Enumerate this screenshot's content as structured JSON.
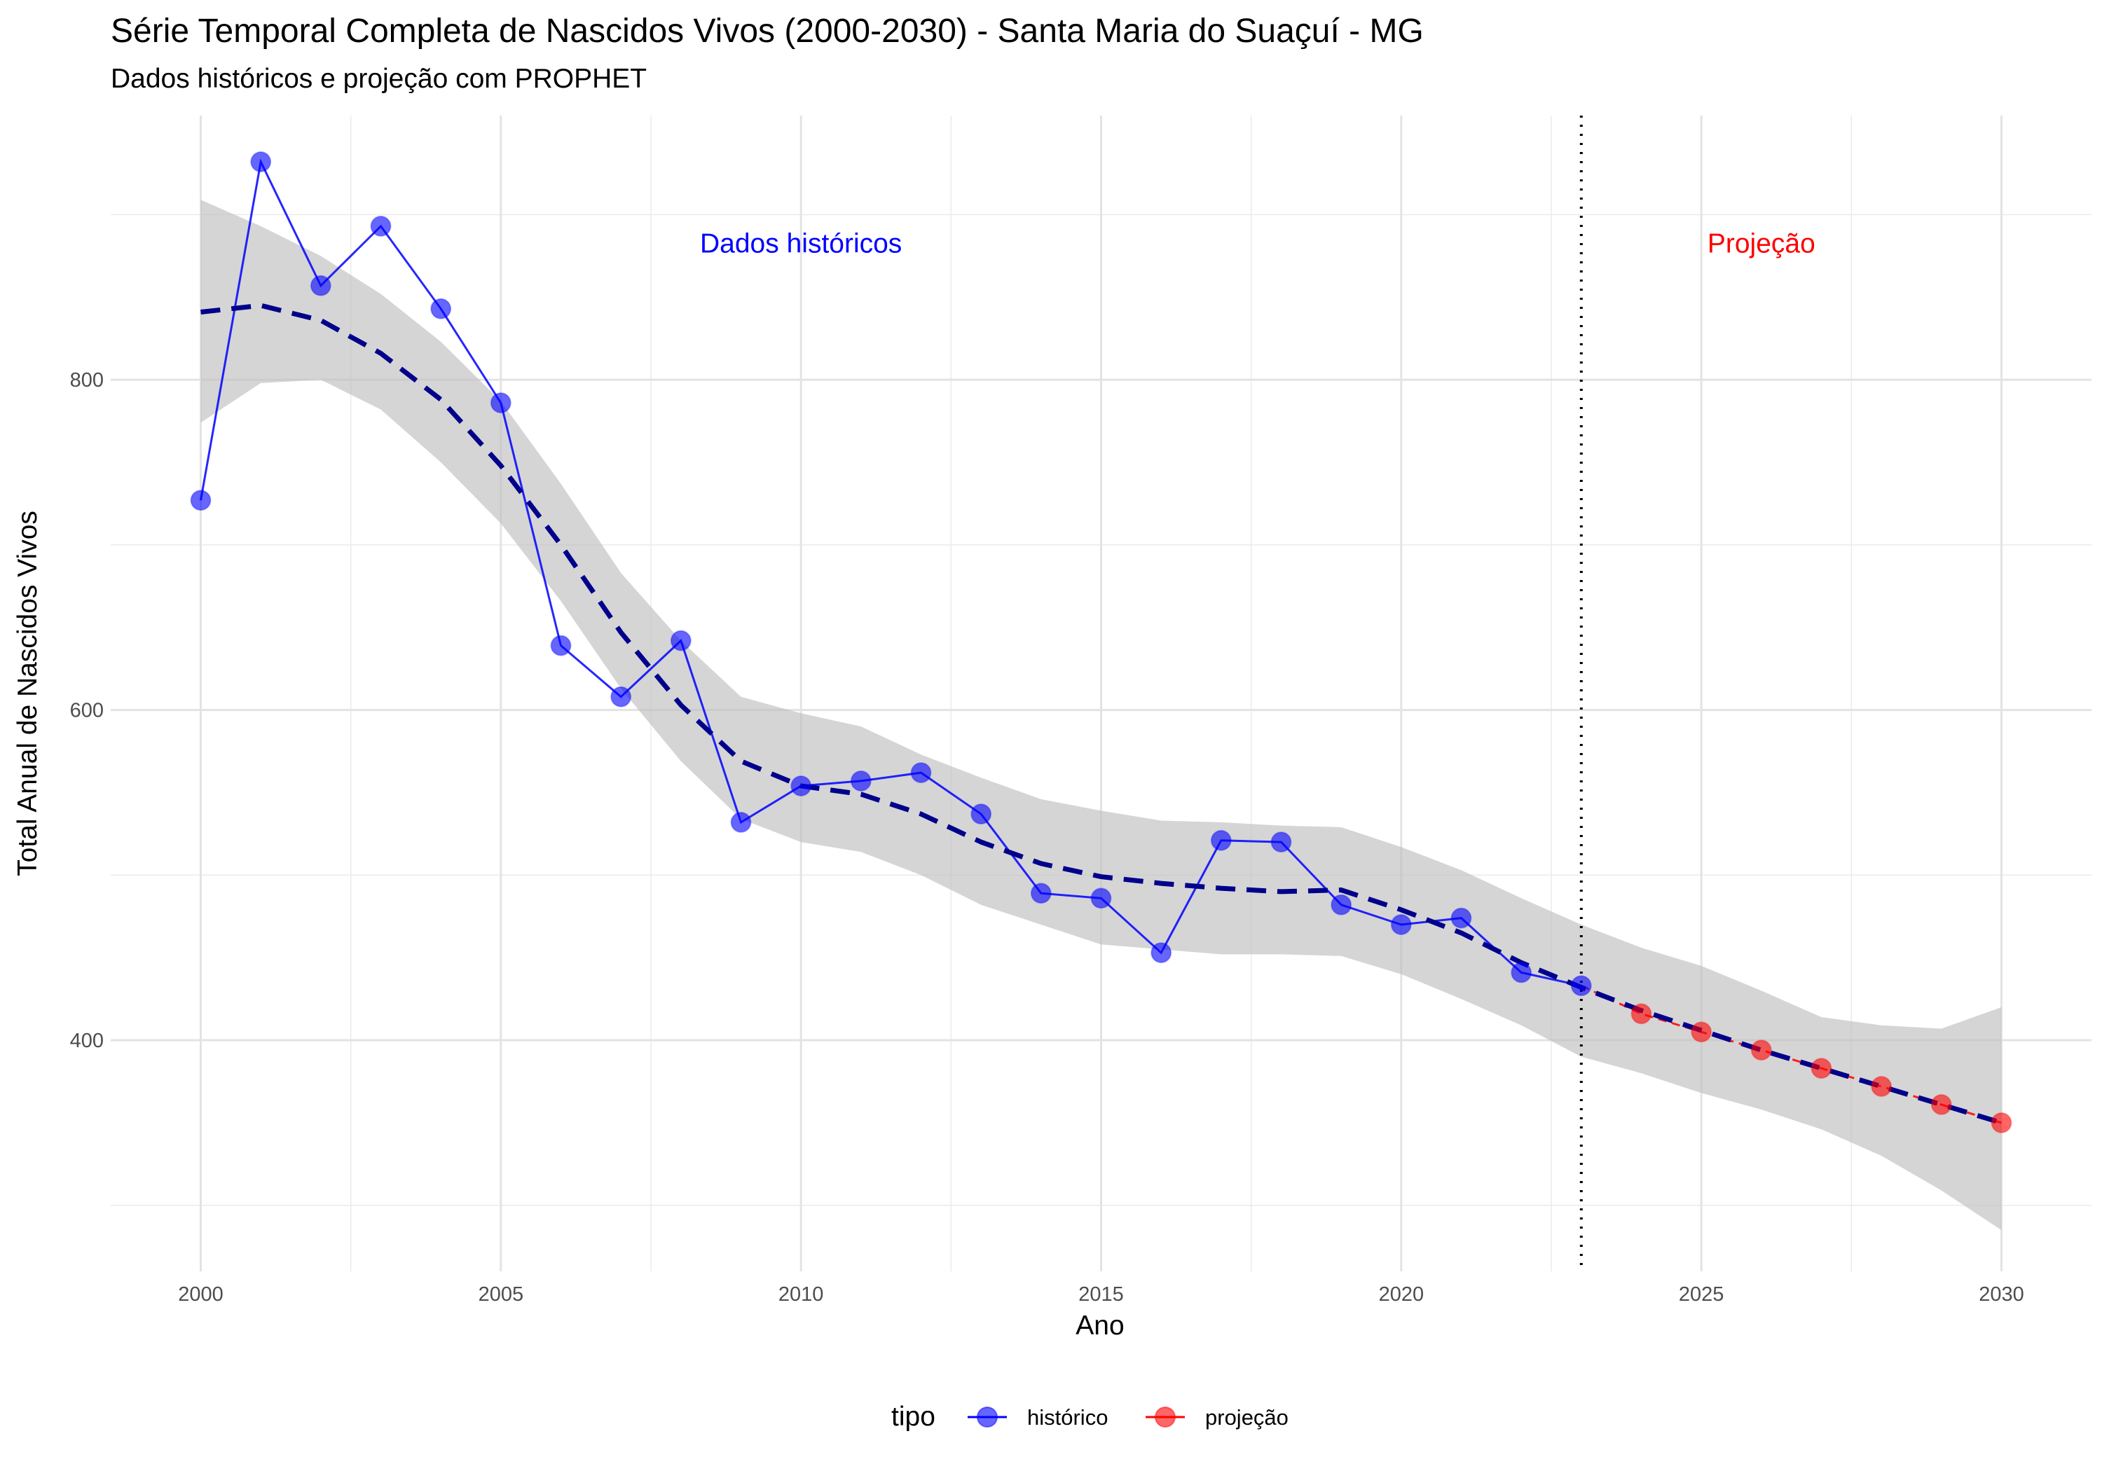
{
  "chart_data": {
    "type": "line",
    "title": "Série Temporal Completa de Nascidos Vivos (2000-2030) -  Santa Maria do Suaçuí - MG",
    "subtitle": "Dados históricos e projeção com PROPHET",
    "xlabel": "Ano",
    "ylabel": "Total Anual de Nascidos Vivos",
    "xlim": [
      1998.5,
      2031.5
    ],
    "ylim": [
      260,
      960
    ],
    "x_ticks": [
      2000,
      2005,
      2010,
      2015,
      2020,
      2025,
      2030
    ],
    "y_ticks": [
      400,
      600,
      800
    ],
    "grid": true,
    "legend": {
      "title": "tipo",
      "position": "bottom",
      "entries": [
        {
          "label": "histórico",
          "color": "#0000ff"
        },
        {
          "label": "projeção",
          "color": "#ff0000"
        }
      ]
    },
    "series": [
      {
        "name": "histórico",
        "color": "#0000ff",
        "x": [
          2000,
          2001,
          2002,
          2003,
          2004,
          2005,
          2006,
          2007,
          2008,
          2009,
          2010,
          2011,
          2012,
          2013,
          2014,
          2015,
          2016,
          2017,
          2018,
          2019,
          2020,
          2021,
          2022,
          2023
        ],
        "y": [
          727,
          932,
          857,
          893,
          843,
          786,
          639,
          608,
          642,
          532,
          554,
          557,
          562,
          537,
          489,
          486,
          453,
          521,
          520,
          482,
          470,
          474,
          441,
          433
        ]
      },
      {
        "name": "projeção",
        "color": "#ff0000",
        "x": [
          2023,
          2024,
          2025,
          2026,
          2027,
          2028,
          2029,
          2030
        ],
        "y": [
          433,
          416,
          405,
          394,
          383,
          372,
          361,
          350
        ]
      }
    ],
    "trend": {
      "color": "#00008b",
      "style": "dashed",
      "x": [
        2000,
        2001,
        2002,
        2003,
        2004,
        2005,
        2006,
        2007,
        2008,
        2009,
        2010,
        2011,
        2012,
        2013,
        2014,
        2015,
        2016,
        2017,
        2018,
        2019,
        2020,
        2021,
        2022,
        2023,
        2024,
        2025,
        2026,
        2027,
        2028,
        2029,
        2030
      ],
      "y": [
        841,
        845,
        836,
        816,
        788,
        748,
        700,
        647,
        603,
        569,
        554,
        549,
        537,
        520,
        507,
        499,
        495,
        492,
        490,
        491,
        479,
        465,
        447,
        432,
        418,
        406,
        394,
        383,
        372,
        361,
        350
      ],
      "lower": [
        774,
        798,
        800,
        782,
        750,
        713,
        666,
        613,
        569,
        534,
        520,
        514,
        500,
        482,
        470,
        458,
        455,
        452,
        452,
        451,
        440,
        425,
        409,
        390,
        380,
        368,
        358,
        346,
        330,
        309,
        285
      ],
      "upper": [
        909,
        893,
        875,
        852,
        823,
        787,
        737,
        683,
        642,
        608,
        598,
        590,
        573,
        559,
        546,
        539,
        533,
        532,
        530,
        529,
        517,
        503,
        486,
        470,
        456,
        445,
        430,
        414,
        409,
        407,
        420
      ]
    },
    "vline": {
      "x": 2023,
      "style": "dotted",
      "color": "#000000"
    },
    "annotations": [
      {
        "text": "Dados históricos",
        "x": 2010,
        "y": 883,
        "color": "#0000ff"
      },
      {
        "text": "Projeção",
        "x": 2026,
        "y": 883,
        "color": "#ff0000"
      }
    ]
  }
}
